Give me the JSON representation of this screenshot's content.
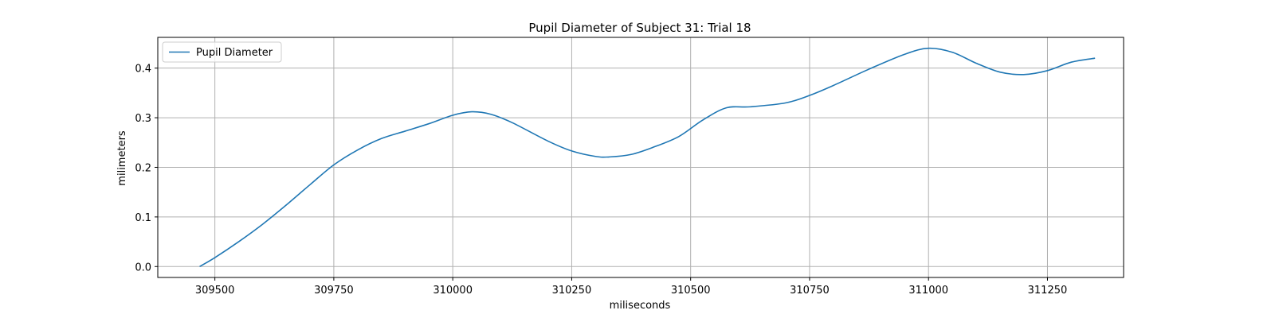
{
  "chart_data": {
    "type": "line",
    "title": "Pupil Diameter of Subject 31: Trial 18",
    "xlabel": "miliseconds",
    "ylabel": "milimeters",
    "xlim": [
      309380,
      311410
    ],
    "ylim": [
      -0.022,
      0.462
    ],
    "xticks": [
      309500,
      309750,
      310000,
      310250,
      310500,
      310750,
      311000,
      311250
    ],
    "yticks": [
      0.0,
      0.1,
      0.2,
      0.3,
      0.4
    ],
    "ytick_labels": [
      "0.0",
      "0.1",
      "0.2",
      "0.3",
      "0.4"
    ],
    "grid": true,
    "legend": {
      "position": "top-left",
      "entries": [
        "Pupil Diameter"
      ]
    },
    "series": [
      {
        "name": "Pupil Diameter",
        "color": "#1f77b4",
        "points": [
          [
            309468,
            0.0
          ],
          [
            309500,
            0.018
          ],
          [
            309550,
            0.05
          ],
          [
            309600,
            0.085
          ],
          [
            309650,
            0.124
          ],
          [
            309700,
            0.165
          ],
          [
            309750,
            0.205
          ],
          [
            309800,
            0.235
          ],
          [
            309850,
            0.258
          ],
          [
            309900,
            0.273
          ],
          [
            309950,
            0.288
          ],
          [
            310000,
            0.305
          ],
          [
            310040,
            0.312
          ],
          [
            310080,
            0.307
          ],
          [
            310125,
            0.29
          ],
          [
            310200,
            0.253
          ],
          [
            310250,
            0.233
          ],
          [
            310300,
            0.222
          ],
          [
            310330,
            0.221
          ],
          [
            310375,
            0.226
          ],
          [
            310420,
            0.24
          ],
          [
            310475,
            0.262
          ],
          [
            310525,
            0.295
          ],
          [
            310575,
            0.32
          ],
          [
            310625,
            0.322
          ],
          [
            310700,
            0.33
          ],
          [
            310750,
            0.345
          ],
          [
            310800,
            0.365
          ],
          [
            310875,
            0.398
          ],
          [
            310950,
            0.428
          ],
          [
            311000,
            0.44
          ],
          [
            311050,
            0.432
          ],
          [
            311100,
            0.41
          ],
          [
            311150,
            0.392
          ],
          [
            311200,
            0.387
          ],
          [
            311250,
            0.395
          ],
          [
            311300,
            0.412
          ],
          [
            311350,
            0.42
          ]
        ]
      }
    ]
  }
}
